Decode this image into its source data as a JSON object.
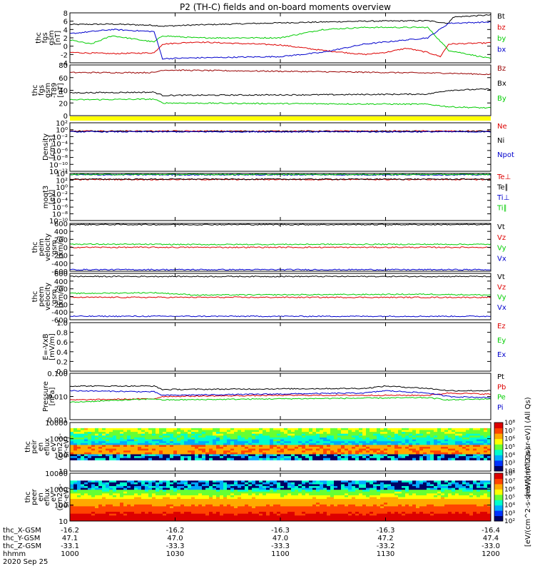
{
  "title": "P2 (TH-C) fields and on-board moments overview",
  "colors": {
    "black": "#000000",
    "red": "#dd0000",
    "green": "#00cc00",
    "blue": "#0000cc",
    "dark_red": "#990000",
    "purple": "#800080",
    "yellow": "#ffff00"
  },
  "chart_data": [
    {
      "type": "line",
      "ylabel_lines": [
        "thc",
        "fgs",
        "gsm",
        "[nT]"
      ],
      "ylim": [
        -4,
        8
      ],
      "yticks": [
        "-4",
        "-2",
        "0",
        "2",
        "4",
        "6",
        "8"
      ],
      "series": [
        {
          "name": "Bt",
          "color": "#000000",
          "points": [
            [
              0,
              5.2
            ],
            [
              0.1,
              5.3
            ],
            [
              0.2,
              5.0
            ],
            [
              0.22,
              4.8
            ],
            [
              0.3,
              5.1
            ],
            [
              0.5,
              5.6
            ],
            [
              0.7,
              6.0
            ],
            [
              0.85,
              6.1
            ],
            [
              0.9,
              5.5
            ],
            [
              0.91,
              7.0
            ],
            [
              1,
              7.5
            ]
          ]
        },
        {
          "name": "bz",
          "color": "#dd0000",
          "points": [
            [
              0,
              -1.5
            ],
            [
              0.1,
              -1.8
            ],
            [
              0.2,
              -1.6
            ],
            [
              0.22,
              0.5
            ],
            [
              0.3,
              1.0
            ],
            [
              0.5,
              0.3
            ],
            [
              0.6,
              -1.0
            ],
            [
              0.7,
              -2.0
            ],
            [
              0.75,
              -1.5
            ],
            [
              0.8,
              -0.5
            ],
            [
              0.85,
              -1.5
            ],
            [
              0.88,
              -2.5
            ],
            [
              0.9,
              0.5
            ],
            [
              1,
              0.8
            ]
          ]
        },
        {
          "name": "by",
          "color": "#00cc00",
          "points": [
            [
              0,
              1.5
            ],
            [
              0.05,
              0.5
            ],
            [
              0.1,
              2.5
            ],
            [
              0.2,
              1.0
            ],
            [
              0.22,
              2.5
            ],
            [
              0.3,
              2.0
            ],
            [
              0.5,
              2.0
            ],
            [
              0.6,
              4.0
            ],
            [
              0.7,
              4.5
            ],
            [
              0.85,
              4.5
            ],
            [
              0.9,
              -1.0
            ],
            [
              1,
              -3.0
            ]
          ]
        },
        {
          "name": "bx",
          "color": "#0000cc",
          "points": [
            [
              0,
              3.0
            ],
            [
              0.1,
              4.0
            ],
            [
              0.2,
              3.5
            ],
            [
              0.22,
              -3.0
            ],
            [
              0.3,
              -2.8
            ],
            [
              0.5,
              -2.5
            ],
            [
              0.6,
              -1.5
            ],
            [
              0.7,
              0.5
            ],
            [
              0.8,
              1.5
            ],
            [
              0.85,
              2.0
            ],
            [
              0.9,
              5.5
            ],
            [
              1,
              5.8
            ]
          ]
        }
      ]
    },
    {
      "type": "line",
      "ylabel_lines": [
        "thc",
        "fgs",
        "gsm",
        "-T89",
        "[nT]"
      ],
      "ylim": [
        0,
        80
      ],
      "yticks": [
        "0",
        "20",
        "40",
        "60",
        "80"
      ],
      "series": [
        {
          "name": "Bz",
          "color": "#990000",
          "points": [
            [
              0,
              68
            ],
            [
              0.2,
              68
            ],
            [
              0.22,
              72
            ],
            [
              0.5,
              70
            ],
            [
              0.9,
              67
            ],
            [
              1,
              65
            ]
          ]
        },
        {
          "name": "Bx",
          "color": "#000000",
          "points": [
            [
              0,
              36
            ],
            [
              0.2,
              37
            ],
            [
              0.22,
              32
            ],
            [
              0.6,
              33
            ],
            [
              0.85,
              34
            ],
            [
              0.9,
              40
            ],
            [
              1,
              42
            ]
          ]
        },
        {
          "name": "By",
          "color": "#00cc00",
          "points": [
            [
              0,
              25
            ],
            [
              0.2,
              26
            ],
            [
              0.22,
              20
            ],
            [
              0.5,
              19
            ],
            [
              0.85,
              18
            ],
            [
              0.9,
              14
            ],
            [
              1,
              12
            ]
          ]
        }
      ]
    },
    {
      "type": "line",
      "ylabel_lines": [
        "Density",
        "[cm-3]"
      ],
      "yscale": "log",
      "ylim": [
        -12,
        2
      ],
      "yticks": [
        "10⁻¹²",
        "10⁻¹⁰",
        "10⁻⁸",
        "10⁻⁶",
        "10⁻⁴",
        "10⁻²",
        "10⁰",
        "10²"
      ],
      "series": [
        {
          "name": "Ne",
          "color": "#dd0000",
          "points": [
            [
              0,
              -0.4
            ],
            [
              1,
              -0.4
            ]
          ]
        },
        {
          "name": "Ni",
          "color": "#000000",
          "points": [
            [
              0,
              -0.5
            ],
            [
              1,
              -0.5
            ]
          ]
        },
        {
          "name": "Npot",
          "color": "#0000cc",
          "points": [
            [
              0,
              -0.6
            ],
            [
              1,
              -0.6
            ]
          ]
        }
      ]
    },
    {
      "type": "line",
      "ylabel_lines": [
        "moqt3",
        "[eV]"
      ],
      "yscale": "log",
      "ylim": [
        -10,
        4
      ],
      "yticks": [
        "10⁻¹⁰",
        "10⁻⁸",
        "10⁻⁶",
        "10⁻⁴",
        "10⁻²",
        "10⁰",
        "10²",
        "10⁴"
      ],
      "series": [
        {
          "name": "Te⊥",
          "color": "#dd0000",
          "points": [
            [
              0,
              2.2
            ],
            [
              1,
              2.2
            ]
          ]
        },
        {
          "name": "Te∥",
          "color": "#000000",
          "points": [
            [
              0,
              2.3
            ],
            [
              1,
              2.3
            ]
          ]
        },
        {
          "name": "Ti⊥",
          "color": "#0000cc",
          "points": [
            [
              0,
              3.6
            ],
            [
              1,
              3.6
            ]
          ]
        },
        {
          "name": "Ti∥",
          "color": "#00cc00",
          "points": [
            [
              0,
              3.7
            ],
            [
              1,
              3.7
            ]
          ]
        }
      ]
    },
    {
      "type": "line",
      "ylabel_lines": [
        "thc",
        "peim",
        "velocity",
        "gsm",
        "[km/s]"
      ],
      "ylim": [
        -600,
        600
      ],
      "yticks": [
        "-600",
        "-400",
        "-200",
        "0",
        "200",
        "400",
        "600"
      ],
      "series": [
        {
          "name": "Vt",
          "color": "#000000",
          "points": [
            [
              0,
              570
            ],
            [
              1,
              570
            ]
          ]
        },
        {
          "name": "Vz",
          "color": "#dd0000",
          "points": [
            [
              0,
              0
            ],
            [
              1,
              0
            ]
          ]
        },
        {
          "name": "Vy",
          "color": "#00cc00",
          "points": [
            [
              0,
              80
            ],
            [
              0.3,
              70
            ],
            [
              0.6,
              75
            ],
            [
              1,
              75
            ]
          ]
        },
        {
          "name": "Vx",
          "color": "#0000cc",
          "points": [
            [
              0,
              -560
            ],
            [
              1,
              -560
            ]
          ]
        }
      ]
    },
    {
      "type": "line",
      "ylabel_lines": [
        "thc",
        "peem",
        "velocity",
        "gsm",
        "[km/s]"
      ],
      "ylim": [
        -600,
        600
      ],
      "yticks": [
        "-600",
        "-400",
        "-200",
        "0",
        "200",
        "400",
        "600"
      ],
      "series": [
        {
          "name": "Vt",
          "color": "#000000",
          "points": [
            [
              0,
              520
            ],
            [
              1,
              520
            ]
          ]
        },
        {
          "name": "Vz",
          "color": "#dd0000",
          "points": [
            [
              0,
              -20
            ],
            [
              1,
              -20
            ]
          ]
        },
        {
          "name": "Vy",
          "color": "#00cc00",
          "points": [
            [
              0,
              80
            ],
            [
              0.2,
              100
            ],
            [
              0.3,
              40
            ],
            [
              0.6,
              50
            ],
            [
              0.85,
              60
            ],
            [
              1,
              40
            ]
          ]
        },
        {
          "name": "Vx",
          "color": "#0000cc",
          "points": [
            [
              0,
              -510
            ],
            [
              1,
              -510
            ]
          ]
        }
      ]
    },
    {
      "type": "line",
      "ylabel_lines": [
        "E=-VxB",
        "[mV/m]"
      ],
      "ylim": [
        0,
        1
      ],
      "yticks": [
        "0.0",
        "0.2",
        "0.4",
        "0.6",
        "0.8",
        "1.0"
      ],
      "series": [
        {
          "name": "Ez",
          "color": "#dd0000",
          "points": []
        },
        {
          "name": "Ey",
          "color": "#00cc00",
          "points": []
        },
        {
          "name": "Ex",
          "color": "#0000cc",
          "points": []
        }
      ]
    },
    {
      "type": "line",
      "ylabel_lines": [
        "Pressure",
        "[nPa]"
      ],
      "yscale": "log",
      "ylim": [
        -3,
        -1
      ],
      "yticks": [
        "0.001",
        "0.010",
        "0.100"
      ],
      "series": [
        {
          "name": "Pt",
          "color": "#000000",
          "points": [
            [
              0,
              -1.55
            ],
            [
              0.2,
              -1.55
            ],
            [
              0.22,
              -1.7
            ],
            [
              0.7,
              -1.65
            ],
            [
              0.75,
              -1.55
            ],
            [
              0.85,
              -1.65
            ],
            [
              0.9,
              -1.75
            ],
            [
              1,
              -1.75
            ]
          ]
        },
        {
          "name": "Pb",
          "color": "#dd0000",
          "points": [
            [
              0,
              -2.15
            ],
            [
              0.2,
              -2.1
            ],
            [
              0.22,
              -2.0
            ],
            [
              0.5,
              -1.95
            ],
            [
              0.85,
              -1.95
            ],
            [
              0.9,
              -1.85
            ],
            [
              1,
              -1.9
            ]
          ]
        },
        {
          "name": "Pe",
          "color": "#00cc00",
          "points": [
            [
              0,
              -2.25
            ],
            [
              0.2,
              -2.1
            ],
            [
              0.22,
              -2.15
            ],
            [
              0.5,
              -2.1
            ],
            [
              0.85,
              -2.05
            ],
            [
              0.9,
              -2.15
            ],
            [
              1,
              -2.1
            ]
          ]
        },
        {
          "name": "Pi",
          "color": "#0000cc",
          "points": [
            [
              0,
              -1.75
            ],
            [
              0.2,
              -1.8
            ],
            [
              0.22,
              -1.95
            ],
            [
              0.7,
              -1.85
            ],
            [
              0.75,
              -1.75
            ],
            [
              0.85,
              -1.85
            ],
            [
              0.9,
              -2.0
            ],
            [
              1,
              -2.05
            ]
          ]
        }
      ]
    },
    {
      "type": "heatmap",
      "ylabel_lines": [
        "thc",
        "peir",
        "en",
        "eflux",
        "eV",
        "(cm2-s-",
        "sr-eV)"
      ],
      "yscale": "log",
      "ylim": [
        0.7,
        4.3
      ],
      "yticks": [
        "10",
        "100",
        "1000",
        "10000"
      ],
      "colorbar_ticks": [
        "10²",
        "10³",
        "10⁴",
        "10⁵",
        "10⁶",
        "10⁷",
        "10⁸"
      ],
      "colorbar_label": "[eV/(cm^2-s-sr-eV)] (All Qs)"
    },
    {
      "type": "heatmap",
      "ylabel_lines": [
        "thc",
        "peer",
        "en",
        "eflux",
        "eV",
        "(cm2-s-",
        "sr-eV)"
      ],
      "yscale": "log",
      "ylim": [
        0.7,
        4.3
      ],
      "yticks": [
        "10",
        "100",
        "1000",
        "10000"
      ],
      "colorbar_ticks": [
        "10²",
        "10³",
        "10⁴",
        "10⁵",
        "10⁶",
        "10⁷",
        "10⁸"
      ],
      "colorbar_label": "[eV/(cm^2-s-sr-eV)] (All Qs)"
    }
  ],
  "xaxis": {
    "rows": [
      {
        "label": "thc_X-GSM",
        "values": [
          "-16.2",
          "-16.2",
          "-16.3",
          "-16.3",
          "-16.4"
        ]
      },
      {
        "label": "thc_Y-GSM",
        "values": [
          "47.1",
          "47.0",
          "47.0",
          "47.2",
          "47.4"
        ]
      },
      {
        "label": "thc_Z-GSM",
        "values": [
          "-33.1",
          "-33.3",
          "-33.3",
          "-33.2",
          "-33.0"
        ]
      },
      {
        "label": "hhmm",
        "values": [
          "1000",
          "1030",
          "1100",
          "1130",
          "1200"
        ]
      }
    ],
    "date": "2020 Sep 25"
  }
}
